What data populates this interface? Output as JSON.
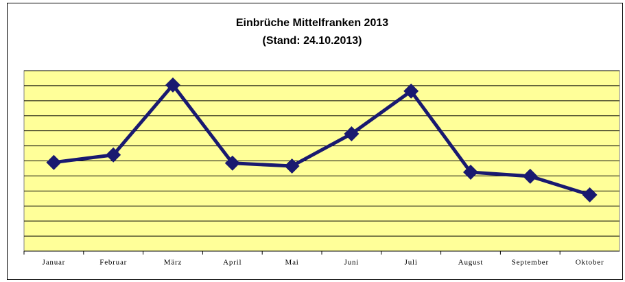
{
  "chart_data": {
    "type": "line",
    "title": "Einbrüche Mittelfranken 2013",
    "subtitle": "(Stand: 24.10.2013)",
    "categories": [
      "Januar",
      "Februar",
      "März",
      "April",
      "Mai",
      "Juni",
      "Juli",
      "August",
      "September",
      "Oktober"
    ],
    "series": [
      {
        "name": "Einbrüche",
        "color": "#191970",
        "values": [
          5.9,
          6.4,
          11.05,
          5.85,
          5.66,
          7.8,
          10.64,
          5.25,
          4.98,
          3.74
        ]
      }
    ],
    "ylim": [
      0,
      12
    ],
    "yticks": [
      0,
      1,
      2,
      3,
      4,
      5,
      6,
      7,
      8,
      9,
      10,
      11,
      12
    ],
    "grid": true,
    "plot_background": "#ffff99"
  }
}
